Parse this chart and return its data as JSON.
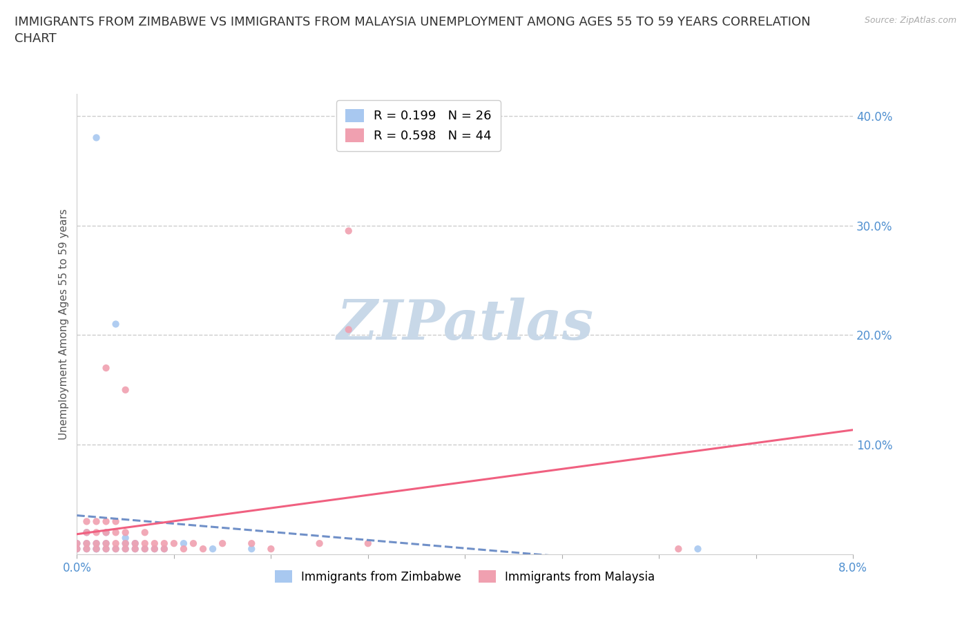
{
  "title": "IMMIGRANTS FROM ZIMBABWE VS IMMIGRANTS FROM MALAYSIA UNEMPLOYMENT AMONG AGES 55 TO 59 YEARS CORRELATION\nCHART",
  "source_text": "Source: ZipAtlas.com",
  "ylabel": "Unemployment Among Ages 55 to 59 years",
  "xlim": [
    0.0,
    0.08
  ],
  "ylim": [
    0.0,
    0.42
  ],
  "xticks": [
    0.0,
    0.01,
    0.02,
    0.03,
    0.04,
    0.05,
    0.06,
    0.07,
    0.08
  ],
  "yticks": [
    0.0,
    0.05,
    0.1,
    0.15,
    0.2,
    0.25,
    0.3,
    0.35,
    0.4
  ],
  "ytick_labels": [
    "",
    "",
    "10.0%",
    "",
    "20.0%",
    "",
    "30.0%",
    "",
    "40.0%"
  ],
  "xtick_labels": [
    "0.0%",
    "",
    "",
    "",
    "",
    "",
    "",
    "",
    "8.0%"
  ],
  "grid_color": "#cccccc",
  "background_color": "#ffffff",
  "watermark": "ZIPatlas",
  "watermark_color": "#c8d8e8",
  "series": [
    {
      "name": "Immigrants from Zimbabwe",
      "R": 0.199,
      "N": 26,
      "color": "#a8c8f0",
      "line_color": "#7090c8",
      "line_style": "--",
      "x": [
        0.0,
        0.0,
        0.001,
        0.001,
        0.001,
        0.002,
        0.002,
        0.002,
        0.003,
        0.003,
        0.003,
        0.004,
        0.004,
        0.005,
        0.005,
        0.005,
        0.006,
        0.006,
        0.007,
        0.008,
        0.009,
        0.011,
        0.014,
        0.018,
        0.064,
        0.002
      ],
      "y": [
        0.005,
        0.01,
        0.005,
        0.01,
        0.02,
        0.005,
        0.01,
        0.38,
        0.005,
        0.01,
        0.02,
        0.005,
        0.21,
        0.005,
        0.01,
        0.015,
        0.005,
        0.01,
        0.005,
        0.005,
        0.005,
        0.01,
        0.005,
        0.005,
        0.005,
        0.005
      ]
    },
    {
      "name": "Immigrants from Malaysia",
      "R": 0.598,
      "N": 44,
      "color": "#f0a0b0",
      "line_color": "#f06080",
      "line_style": "-",
      "x": [
        0.0,
        0.0,
        0.001,
        0.001,
        0.001,
        0.001,
        0.002,
        0.002,
        0.002,
        0.002,
        0.003,
        0.003,
        0.003,
        0.003,
        0.003,
        0.004,
        0.004,
        0.004,
        0.004,
        0.005,
        0.005,
        0.005,
        0.005,
        0.006,
        0.006,
        0.007,
        0.007,
        0.007,
        0.008,
        0.008,
        0.009,
        0.009,
        0.01,
        0.011,
        0.012,
        0.013,
        0.015,
        0.018,
        0.02,
        0.025,
        0.028,
        0.03,
        0.062,
        0.028
      ],
      "y": [
        0.005,
        0.01,
        0.005,
        0.01,
        0.02,
        0.03,
        0.005,
        0.01,
        0.02,
        0.03,
        0.005,
        0.01,
        0.02,
        0.17,
        0.03,
        0.005,
        0.01,
        0.02,
        0.03,
        0.005,
        0.01,
        0.02,
        0.15,
        0.005,
        0.01,
        0.005,
        0.01,
        0.02,
        0.005,
        0.01,
        0.005,
        0.01,
        0.01,
        0.005,
        0.01,
        0.005,
        0.01,
        0.01,
        0.005,
        0.01,
        0.295,
        0.01,
        0.005,
        0.205
      ]
    }
  ],
  "legend_R_labels": [
    "R = 0.199   N = 26",
    "R = 0.598   N = 44"
  ],
  "legend_colors": [
    "#a8c8f0",
    "#f0a0b0"
  ],
  "tick_color": "#5090d0",
  "title_fontsize": 13,
  "axis_fontsize": 11,
  "reg_line_intercept_zim": 0.003,
  "reg_line_slope_zim": 3.0,
  "reg_line_intercept_mal": 0.002,
  "reg_line_slope_mal": 3.3
}
